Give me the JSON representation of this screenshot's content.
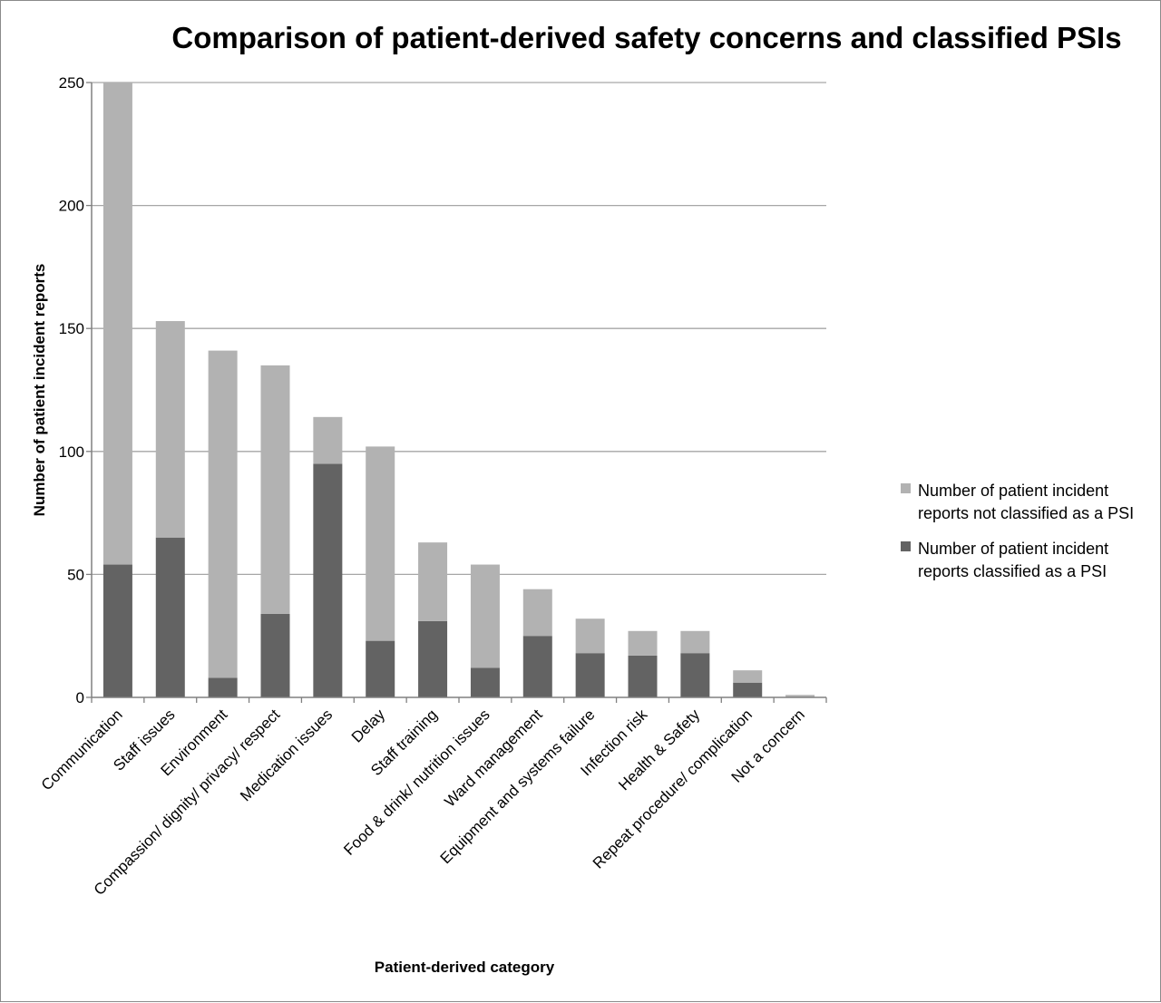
{
  "colors": {
    "not_psi": "#b2b2b2",
    "psi": "#636363",
    "grid": "#a6a6a6",
    "axis": "#808080",
    "text": "#000000"
  },
  "chart_data": {
    "type": "bar",
    "stacked": true,
    "title": "Comparison of patient-derived safety concerns and classified PSIs",
    "xlabel": "Patient-derived category",
    "ylabel": "Number of patient incident reports",
    "ylim": [
      0,
      250
    ],
    "yticks": [
      "0",
      "50",
      "100",
      "150",
      "200",
      "250"
    ],
    "grid": true,
    "legend_position": "right",
    "categories": [
      "Communication",
      "Staff issues",
      "Environment",
      "Compassion/ dignity/ privacy/ respect",
      "Medication issues",
      "Delay",
      "Staff training",
      "Food & drink/ nutrition issues",
      "Ward management",
      "Equipment and systems failure",
      "Infection risk",
      "Health & Safety",
      "Repeat procedure/ complication",
      "Not a concern"
    ],
    "series": [
      {
        "name": "Number of patient incident reports classified as a PSI",
        "legend_lines": [
          "Number of patient incident",
          "reports classified as a PSI"
        ],
        "color": "#636363",
        "values": [
          54,
          65,
          8,
          34,
          95,
          23,
          31,
          12,
          25,
          18,
          17,
          18,
          6,
          0
        ]
      },
      {
        "name": "Number of patient incident reports not classified as a PSI",
        "legend_lines": [
          "Number of patient incident",
          "reports not classified as a PSI"
        ],
        "color": "#b2b2b2",
        "values": [
          196,
          88,
          133,
          101,
          19,
          79,
          32,
          42,
          19,
          14,
          10,
          9,
          5,
          1
        ]
      }
    ]
  }
}
